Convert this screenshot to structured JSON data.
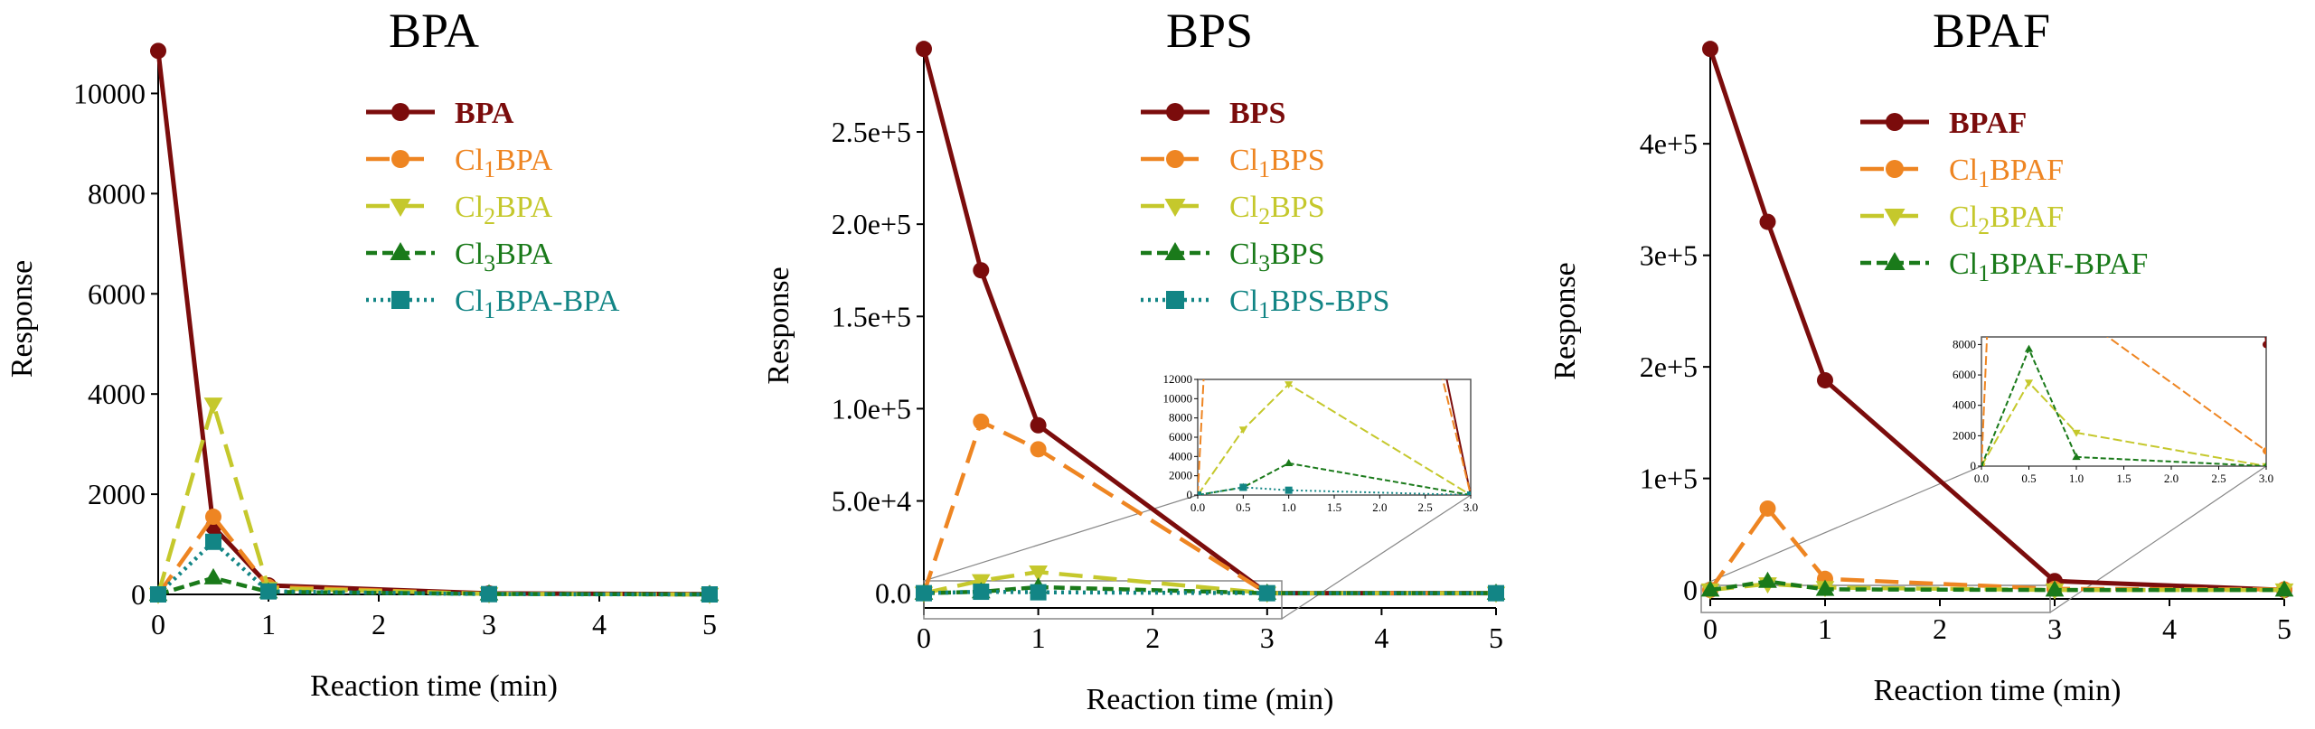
{
  "colors": {
    "parent": "#7b0c0c",
    "cl1": "#ee8522",
    "cl2": "#c5c82c",
    "cl3": "#1a7a1a",
    "dimer": "#128585",
    "axis": "#000000",
    "zoom_box": "#888888"
  },
  "chart_data": [
    {
      "type": "line",
      "title": "BPA",
      "xlabel": "Reaction time (min)",
      "ylabel": "Response",
      "xlim": [
        0,
        5
      ],
      "ylim": [
        0,
        11000
      ],
      "xticks": [
        "0",
        "1",
        "2",
        "3",
        "4",
        "5"
      ],
      "yticks": [
        "0",
        "2000",
        "4000",
        "6000",
        "8000",
        "10000"
      ],
      "x": [
        0,
        0.5,
        1,
        3,
        5
      ],
      "legend_position": "top-right",
      "series": [
        {
          "name": "BPA",
          "label_prefix": "",
          "label_sub": "",
          "label_suffix": "BPA",
          "bold": true,
          "color": "#7b0c0c",
          "dash": "solid",
          "marker": "circle",
          "values": [
            10850,
            1350,
            180,
            20,
            5
          ]
        },
        {
          "name": "Cl1BPA",
          "label_prefix": "Cl",
          "label_sub": "1",
          "label_suffix": "BPA",
          "bold": false,
          "color": "#ee8522",
          "dash": "long",
          "marker": "circle",
          "values": [
            0,
            1550,
            150,
            10,
            0
          ]
        },
        {
          "name": "Cl2BPA",
          "label_prefix": "Cl",
          "label_sub": "2",
          "label_suffix": "BPA",
          "bold": false,
          "color": "#c5c82c",
          "dash": "long",
          "marker": "triangle-down",
          "values": [
            0,
            3800,
            120,
            10,
            0
          ]
        },
        {
          "name": "Cl3BPA",
          "label_prefix": "Cl",
          "label_sub": "3",
          "label_suffix": "BPA",
          "bold": false,
          "color": "#1a7a1a",
          "dash": "short",
          "marker": "triangle-up",
          "values": [
            0,
            330,
            50,
            10,
            0
          ]
        },
        {
          "name": "Cl1BPA-BPA",
          "label_prefix": "Cl",
          "label_sub": "1",
          "label_suffix": "BPA-BPA",
          "bold": false,
          "color": "#128585",
          "dash": "dot",
          "marker": "square",
          "values": [
            0,
            1050,
            60,
            5,
            0
          ]
        }
      ]
    },
    {
      "type": "line",
      "title": "BPS",
      "xlabel": "Reaction time (min)",
      "ylabel": "Response",
      "xlim": [
        0,
        5
      ],
      "ylim": [
        -8000,
        298000
      ],
      "xticks": [
        "0",
        "1",
        "2",
        "3",
        "4",
        "5"
      ],
      "yticks": [
        "0.0",
        "5.0e+4",
        "1.0e+5",
        "1.5e+5",
        "2.0e+5",
        "2.5e+5"
      ],
      "x": [
        0,
        0.5,
        1,
        3,
        5
      ],
      "legend_position": "top-right",
      "series": [
        {
          "name": "BPS",
          "label_prefix": "",
          "label_sub": "",
          "label_suffix": "BPS",
          "bold": true,
          "color": "#7b0c0c",
          "dash": "solid",
          "marker": "circle",
          "values": [
            295000,
            175000,
            91000,
            0,
            0
          ]
        },
        {
          "name": "Cl1BPS",
          "label_prefix": "Cl",
          "label_sub": "1",
          "label_suffix": "BPS",
          "bold": false,
          "color": "#ee8522",
          "dash": "long",
          "marker": "circle",
          "values": [
            0,
            93000,
            78000,
            0,
            0
          ]
        },
        {
          "name": "Cl2BPS",
          "label_prefix": "Cl",
          "label_sub": "2",
          "label_suffix": "BPS",
          "bold": false,
          "color": "#c5c82c",
          "dash": "long",
          "marker": "triangle-down",
          "values": [
            0,
            6800,
            11500,
            0,
            0
          ]
        },
        {
          "name": "Cl3BPS",
          "label_prefix": "Cl",
          "label_sub": "3",
          "label_suffix": "BPS",
          "bold": false,
          "color": "#1a7a1a",
          "dash": "short",
          "marker": "triangle-up",
          "values": [
            0,
            800,
            3300,
            0,
            0
          ]
        },
        {
          "name": "Cl1BPS-BPS",
          "label_prefix": "Cl",
          "label_sub": "1",
          "label_suffix": "BPS-BPS",
          "bold": false,
          "color": "#128585",
          "dash": "dot",
          "marker": "square",
          "values": [
            0,
            800,
            500,
            0,
            0
          ]
        }
      ],
      "inset": {
        "xlim": [
          0,
          3
        ],
        "ylim": [
          0,
          12000
        ],
        "xticks": [
          "0.0",
          "0.5",
          "1.0",
          "1.5",
          "2.0",
          "2.5",
          "3.0"
        ],
        "yticks": [
          "0",
          "2000",
          "4000",
          "6000",
          "8000",
          "10000",
          "12000"
        ],
        "zoom_xlim": [
          0,
          3
        ],
        "zoom_ylim": [
          -8000,
          12000
        ]
      }
    },
    {
      "type": "line",
      "title": "BPAF",
      "xlabel": "Reaction time (min)",
      "ylabel": "Response",
      "xlim": [
        0,
        5
      ],
      "ylim": [
        -8000,
        490000
      ],
      "xticks": [
        "0",
        "1",
        "2",
        "3",
        "4",
        "5"
      ],
      "yticks": [
        "0",
        "1e+5",
        "2e+5",
        "3e+5",
        "4e+5"
      ],
      "x": [
        0,
        0.5,
        1,
        3,
        5
      ],
      "legend_position": "top-right",
      "series": [
        {
          "name": "BPAF",
          "label_prefix": "",
          "label_sub": "",
          "label_suffix": "BPAF",
          "bold": true,
          "color": "#7b0c0c",
          "dash": "solid",
          "marker": "circle",
          "values": [
            485000,
            330000,
            188000,
            8000,
            0
          ]
        },
        {
          "name": "Cl1BPAF",
          "label_prefix": "Cl",
          "label_sub": "1",
          "label_suffix": "BPAF",
          "bold": false,
          "color": "#ee8522",
          "dash": "long",
          "marker": "circle",
          "values": [
            0,
            73000,
            10000,
            1000,
            500
          ]
        },
        {
          "name": "Cl2BPAF",
          "label_prefix": "Cl",
          "label_sub": "2",
          "label_suffix": "BPAF",
          "bold": false,
          "color": "#c5c82c",
          "dash": "long",
          "marker": "triangle-down",
          "values": [
            0,
            5500,
            2200,
            0,
            0
          ]
        },
        {
          "name": "Cl1BPAF-BPAF",
          "label_prefix": "Cl",
          "label_sub": "1",
          "label_suffix": "BPAF-BPAF",
          "bold": false,
          "color": "#1a7a1a",
          "dash": "short",
          "marker": "triangle-up",
          "values": [
            0,
            7700,
            600,
            0,
            0
          ]
        }
      ],
      "inset": {
        "xlim": [
          0,
          3
        ],
        "ylim": [
          0,
          8500
        ],
        "xticks": [
          "0.0",
          "0.5",
          "1.0",
          "1.5",
          "2.0",
          "2.5",
          "3.0"
        ],
        "yticks": [
          "0",
          "2000",
          "4000",
          "6000",
          "8000"
        ],
        "zoom_xlim": [
          0,
          3
        ],
        "zoom_ylim": [
          -8000,
          14000
        ]
      }
    }
  ]
}
